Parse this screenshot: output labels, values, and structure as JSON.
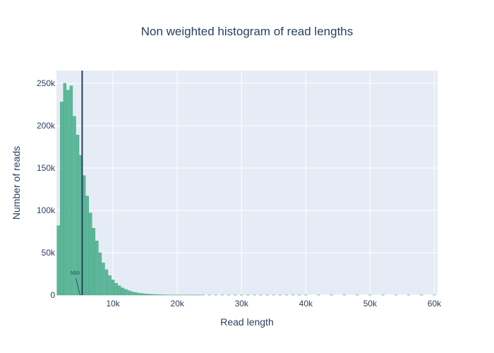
{
  "chart_data": {
    "type": "bar",
    "title": "Non weighted histogram of read lengths",
    "xlabel": "Read length",
    "ylabel": "Number of reads",
    "xlim": [
      1200,
      60500
    ],
    "ylim": [
      0,
      265000
    ],
    "x_ticks": [
      {
        "value": 10000,
        "label": "10k"
      },
      {
        "value": 20000,
        "label": "20k"
      },
      {
        "value": 30000,
        "label": "30k"
      },
      {
        "value": 40000,
        "label": "40k"
      },
      {
        "value": 50000,
        "label": "50k"
      },
      {
        "value": 60000,
        "label": "60k"
      }
    ],
    "y_ticks": [
      {
        "value": 0,
        "label": "0"
      },
      {
        "value": 50000,
        "label": "50k"
      },
      {
        "value": 100000,
        "label": "100k"
      },
      {
        "value": 150000,
        "label": "150k"
      },
      {
        "value": 200000,
        "label": "200k"
      },
      {
        "value": 250000,
        "label": "250k"
      }
    ],
    "bin_width": 500,
    "x": [
      1500,
      2000,
      2500,
      3000,
      3500,
      4000,
      4500,
      5000,
      5500,
      6000,
      6500,
      7000,
      7500,
      8000,
      8500,
      9000,
      9500,
      10000,
      10500,
      11000,
      11500,
      12000,
      12500,
      13000,
      13500,
      14000,
      14500,
      15000,
      15500,
      16000,
      16500,
      17000,
      17500,
      18000,
      18500,
      19000,
      19500,
      20000,
      20500,
      21000,
      21500,
      22000,
      22500,
      23000,
      23500,
      24000,
      25000,
      26000,
      27000,
      28000,
      29000,
      30000,
      31000,
      32000,
      33000,
      34000,
      35000,
      36000,
      37000,
      38000,
      39000,
      40000,
      42000,
      44000,
      46000,
      48000,
      50000,
      52000,
      54000,
      56000,
      58000,
      60000
    ],
    "values": [
      82000,
      228000,
      250000,
      242000,
      247000,
      211000,
      189000,
      165000,
      141000,
      117000,
      97000,
      79000,
      64000,
      50000,
      38000,
      30000,
      23000,
      18000,
      14000,
      11000,
      8500,
      6800,
      5200,
      4000,
      3100,
      2400,
      1900,
      1500,
      1200,
      950,
      750,
      600,
      480,
      380,
      300,
      240,
      200,
      160,
      130,
      110,
      90,
      75,
      62,
      52,
      45,
      38,
      30,
      24,
      19,
      15,
      12,
      10,
      8,
      7,
      6,
      5,
      4,
      4,
      3,
      3,
      2,
      2,
      2,
      1,
      1,
      1,
      1,
      1,
      1,
      1,
      1,
      1
    ],
    "bar_color": "#5bb898",
    "bar_border_color": "#3e9c7c",
    "plot_bg": "#e5ecf6",
    "grid": true,
    "legend": "none",
    "annotations": [
      {
        "type": "vline",
        "x": 5200,
        "color": "#2a3f5f",
        "label": "N50"
      }
    ]
  }
}
